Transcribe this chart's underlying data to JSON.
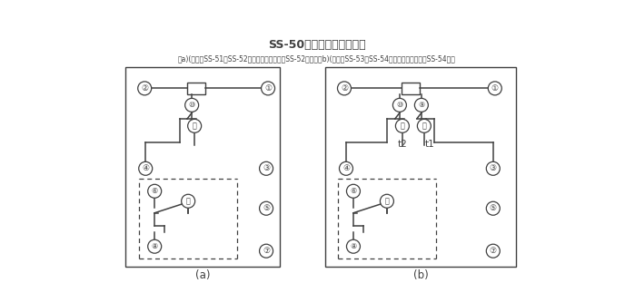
{
  "title_main": "SS-50系列背后端子接線圖",
  "caption": "（a)(背視）SS-51、SS-52型，圖中虛線部分僅SS-52型有；（b)(背視）SS-53、SS-54型，圖中虛線部分僅SS-54型有",
  "label_a": "(a)",
  "label_b": "(b)",
  "bg_color": "#ffffff",
  "line_color": "#404040"
}
